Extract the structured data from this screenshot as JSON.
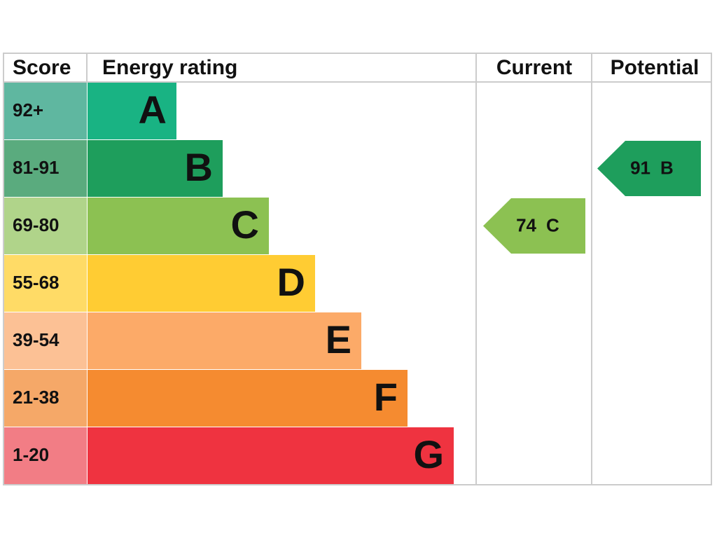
{
  "header": {
    "score": "Score",
    "rating": "Energy rating",
    "current": "Current",
    "potential": "Potential"
  },
  "bands": [
    {
      "score": "92+",
      "letter": "A",
      "color": "#19b383",
      "score_color": "#5fb7a0"
    },
    {
      "score": "81-91",
      "letter": "B",
      "color": "#1e9e5c",
      "score_color": "#5aab7e"
    },
    {
      "score": "69-80",
      "letter": "C",
      "color": "#8cc152",
      "score_color": "#b0d48a"
    },
    {
      "score": "55-68",
      "letter": "D",
      "color": "#ffcc33",
      "score_color": "#ffdb66"
    },
    {
      "score": "39-54",
      "letter": "E",
      "color": "#fcaa68",
      "score_color": "#fcc195"
    },
    {
      "score": "21-38",
      "letter": "F",
      "color": "#f58b30",
      "score_color": "#f5a868"
    },
    {
      "score": "1-20",
      "letter": "G",
      "color": "#ef3340",
      "score_color": "#f27d85"
    }
  ],
  "current": {
    "score": 74,
    "band": "C"
  },
  "potential": {
    "score": 91,
    "band": "B"
  }
}
